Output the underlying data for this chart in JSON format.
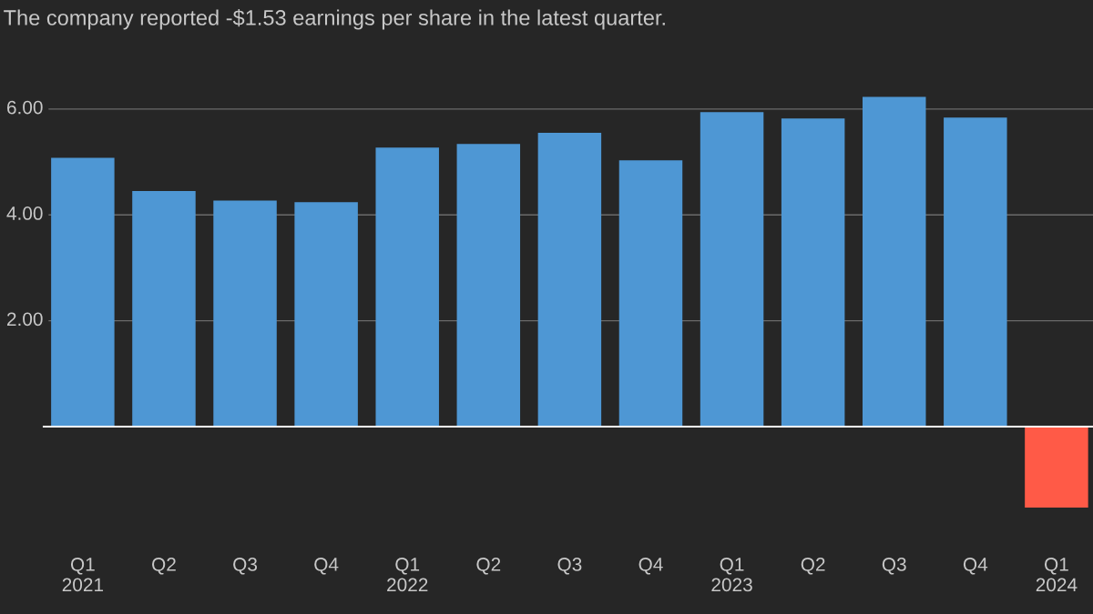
{
  "chart_data": {
    "type": "bar",
    "subtitle": "The company reported -$1.53 earnings per share in the latest quarter.",
    "categories": [
      "Q1\n2021",
      "Q2",
      "Q3",
      "Q4",
      "Q1\n2022",
      "Q2",
      "Q3",
      "Q4",
      "Q1\n2023",
      "Q2",
      "Q3",
      "Q4",
      "Q1\n2024"
    ],
    "values": [
      5.08,
      4.45,
      4.27,
      4.24,
      5.27,
      5.34,
      5.55,
      5.03,
      5.94,
      5.82,
      6.23,
      5.84,
      -1.53
    ],
    "colors": [
      "#4e97d4",
      "#4e97d4",
      "#4e97d4",
      "#4e97d4",
      "#4e97d4",
      "#4e97d4",
      "#4e97d4",
      "#4e97d4",
      "#4e97d4",
      "#4e97d4",
      "#4e97d4",
      "#4e97d4",
      "#ff5a47"
    ],
    "ylim": [
      -3.54,
      8.06
    ],
    "yticks": [
      {
        "value": 2,
        "label": "2.00"
      },
      {
        "value": 4,
        "label": "4.00"
      },
      {
        "value": 6,
        "label": "6.00"
      }
    ],
    "ref_lines": [
      {
        "axis": "y",
        "value": 0,
        "label": null,
        "color": "#ffffff"
      }
    ],
    "grid": "y"
  }
}
